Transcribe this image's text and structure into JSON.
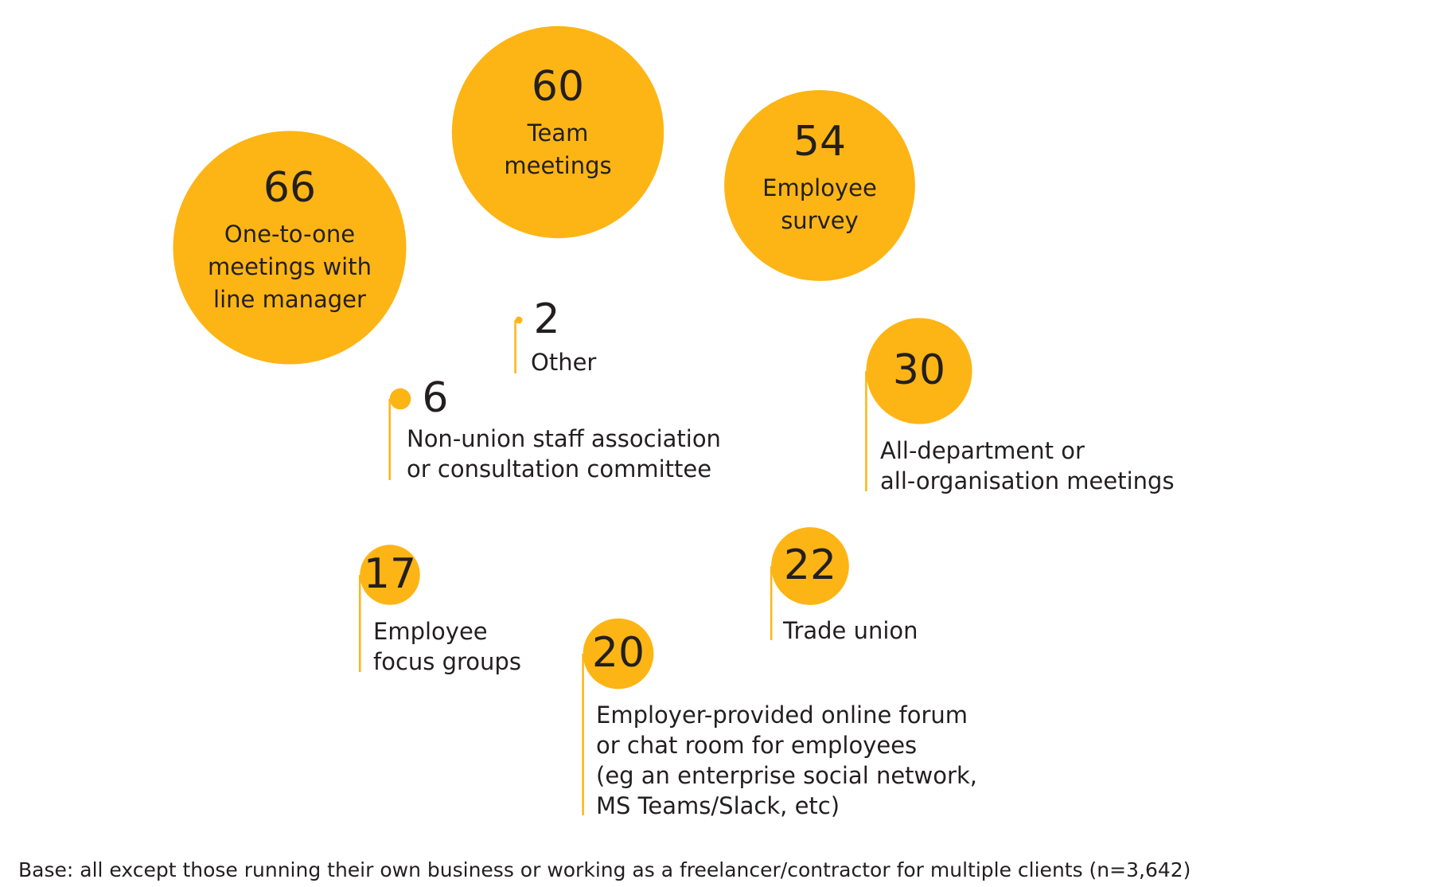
{
  "chart_data": {
    "type": "bubble",
    "categories": [
      [
        "One-to-one",
        "meetings with",
        "line manager"
      ],
      [
        "Team",
        "meetings"
      ],
      [
        "Employee",
        "survey"
      ],
      [
        "Other"
      ],
      [
        "Non-union staff association",
        "or consultation committee"
      ],
      [
        "All-department or",
        "all-organisation meetings"
      ],
      [
        "Employee",
        "focus groups"
      ],
      [
        "Trade union"
      ],
      [
        "Employer-provided online forum",
        "or chat room for employees",
        "(eg an enterprise social network,",
        "MS Teams/Slack, etc)"
      ]
    ],
    "values": [
      66,
      60,
      54,
      2,
      6,
      30,
      17,
      22,
      20
    ],
    "color": "#fdb515",
    "footnote": "Base: all except those running their own business or working as a freelancer/contractor for multiple clients (n=3,642)"
  }
}
